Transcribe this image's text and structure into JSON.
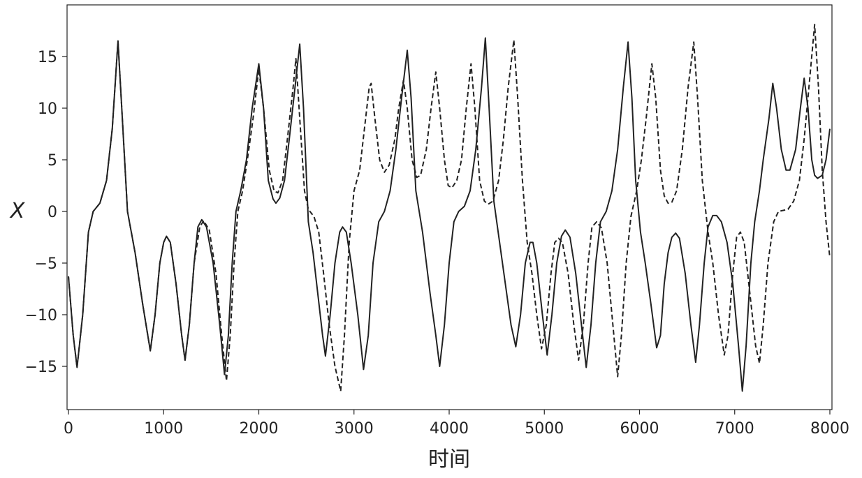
{
  "chart_data": {
    "type": "line",
    "title": "",
    "xlabel": "时间",
    "ylabel": "X",
    "xlim": [
      0,
      8000
    ],
    "ylim": [
      -19,
      20
    ],
    "xticks": [
      0,
      1000,
      2000,
      3000,
      4000,
      5000,
      6000,
      7000,
      8000
    ],
    "xtick_labels": [
      "0",
      "1000",
      "2000",
      "3000",
      "4000",
      "5000",
      "6000",
      "7000",
      "8000"
    ],
    "yticks": [
      -15,
      -10,
      -5,
      0,
      5,
      10,
      15
    ],
    "ytick_labels": [
      "−15",
      "−10",
      "−5",
      "0",
      "5",
      "10",
      "15"
    ],
    "grid": false,
    "legend": "none",
    "series": [
      {
        "style": "solid",
        "color": "#222222",
        "points": [
          [
            0,
            -6.3
          ],
          [
            50,
            -12
          ],
          [
            90,
            -15.1
          ],
          [
            150,
            -10
          ],
          [
            210,
            -2
          ],
          [
            260,
            0
          ],
          [
            330,
            0.8
          ],
          [
            400,
            3
          ],
          [
            460,
            8
          ],
          [
            520,
            16.5
          ],
          [
            560,
            10
          ],
          [
            620,
            0
          ],
          [
            700,
            -4
          ],
          [
            780,
            -9
          ],
          [
            860,
            -13.5
          ],
          [
            910,
            -10
          ],
          [
            960,
            -5
          ],
          [
            1000,
            -3
          ],
          [
            1030,
            -2.4
          ],
          [
            1070,
            -3
          ],
          [
            1130,
            -7
          ],
          [
            1190,
            -12
          ],
          [
            1225,
            -14.4
          ],
          [
            1270,
            -11
          ],
          [
            1320,
            -5
          ],
          [
            1360,
            -1.5
          ],
          [
            1400,
            -0.8
          ],
          [
            1450,
            -1.5
          ],
          [
            1520,
            -5
          ],
          [
            1590,
            -11
          ],
          [
            1640,
            -15.8
          ],
          [
            1680,
            -12
          ],
          [
            1720,
            -5
          ],
          [
            1760,
            0
          ],
          [
            1810,
            2
          ],
          [
            1870,
            5
          ],
          [
            1930,
            10
          ],
          [
            2000,
            14.3
          ],
          [
            2050,
            10
          ],
          [
            2100,
            3
          ],
          [
            2150,
            1.2
          ],
          [
            2180,
            0.8
          ],
          [
            2220,
            1.3
          ],
          [
            2270,
            3
          ],
          [
            2320,
            7
          ],
          [
            2380,
            12
          ],
          [
            2430,
            16.2
          ],
          [
            2470,
            10
          ],
          [
            2520,
            -1
          ],
          [
            2570,
            -4
          ],
          [
            2620,
            -8
          ],
          [
            2670,
            -12
          ],
          [
            2700,
            -14
          ],
          [
            2750,
            -10
          ],
          [
            2800,
            -5
          ],
          [
            2850,
            -2
          ],
          [
            2880,
            -1.5
          ],
          [
            2920,
            -2
          ],
          [
            2970,
            -5
          ],
          [
            3040,
            -10
          ],
          [
            3100,
            -15.3
          ],
          [
            3150,
            -12
          ],
          [
            3200,
            -5
          ],
          [
            3260,
            -1
          ],
          [
            3320,
            0
          ],
          [
            3380,
            2
          ],
          [
            3440,
            6
          ],
          [
            3500,
            11
          ],
          [
            3560,
            15.6
          ],
          [
            3600,
            11
          ],
          [
            3650,
            2
          ],
          [
            3720,
            -2
          ],
          [
            3800,
            -8
          ],
          [
            3860,
            -12
          ],
          [
            3900,
            -15
          ],
          [
            3950,
            -11
          ],
          [
            4000,
            -5
          ],
          [
            4050,
            -1
          ],
          [
            4100,
            0
          ],
          [
            4160,
            0.5
          ],
          [
            4220,
            2
          ],
          [
            4280,
            6
          ],
          [
            4340,
            12
          ],
          [
            4380,
            16.8
          ],
          [
            4420,
            10
          ],
          [
            4470,
            1
          ],
          [
            4530,
            -3
          ],
          [
            4590,
            -7
          ],
          [
            4650,
            -11
          ],
          [
            4700,
            -13.1
          ],
          [
            4750,
            -10
          ],
          [
            4800,
            -5
          ],
          [
            4850,
            -3
          ],
          [
            4880,
            -3
          ],
          [
            4920,
            -5
          ],
          [
            4980,
            -10
          ],
          [
            5030,
            -13.9
          ],
          [
            5080,
            -10
          ],
          [
            5130,
            -5
          ],
          [
            5180,
            -2.4
          ],
          [
            5220,
            -1.8
          ],
          [
            5270,
            -2.5
          ],
          [
            5330,
            -6
          ],
          [
            5390,
            -11
          ],
          [
            5440,
            -15.1
          ],
          [
            5490,
            -11
          ],
          [
            5540,
            -5
          ],
          [
            5590,
            -1
          ],
          [
            5650,
            0
          ],
          [
            5710,
            2
          ],
          [
            5770,
            6
          ],
          [
            5830,
            12
          ],
          [
            5880,
            16.4
          ],
          [
            5920,
            11
          ],
          [
            5960,
            3
          ],
          [
            6010,
            -2
          ],
          [
            6060,
            -5
          ],
          [
            6120,
            -9
          ],
          [
            6180,
            -13.2
          ],
          [
            6220,
            -12
          ],
          [
            6260,
            -7
          ],
          [
            6300,
            -4
          ],
          [
            6340,
            -2.5
          ],
          [
            6380,
            -2.1
          ],
          [
            6420,
            -2.6
          ],
          [
            6480,
            -6
          ],
          [
            6540,
            -11
          ],
          [
            6590,
            -14.6
          ],
          [
            6630,
            -11
          ],
          [
            6680,
            -5
          ],
          [
            6720,
            -1.5
          ],
          [
            6770,
            -0.4
          ],
          [
            6810,
            -0.4
          ],
          [
            6860,
            -1
          ],
          [
            6920,
            -3
          ],
          [
            6980,
            -7
          ],
          [
            7040,
            -13
          ],
          [
            7080,
            -17.4
          ],
          [
            7120,
            -13
          ],
          [
            7170,
            -5
          ],
          [
            7210,
            -1
          ],
          [
            7260,
            2
          ],
          [
            7300,
            5
          ],
          [
            7360,
            9
          ],
          [
            7400,
            12.4
          ],
          [
            7440,
            10
          ],
          [
            7490,
            6
          ],
          [
            7540,
            4
          ],
          [
            7580,
            4
          ],
          [
            7640,
            6
          ],
          [
            7690,
            10
          ],
          [
            7730,
            12.9
          ],
          [
            7770,
            10
          ],
          [
            7810,
            5
          ],
          [
            7840,
            3.5
          ],
          [
            7870,
            3.2
          ],
          [
            7920,
            3.5
          ],
          [
            7960,
            5
          ],
          [
            8000,
            8
          ]
        ]
      },
      {
        "style": "dashed",
        "color": "#222222",
        "points": [
          [
            0,
            -6.3
          ],
          [
            50,
            -12
          ],
          [
            90,
            -15.1
          ],
          [
            150,
            -10
          ],
          [
            210,
            -2
          ],
          [
            260,
            0
          ],
          [
            330,
            0.8
          ],
          [
            400,
            3
          ],
          [
            460,
            8
          ],
          [
            520,
            16.5
          ],
          [
            560,
            10
          ],
          [
            620,
            0
          ],
          [
            700,
            -4
          ],
          [
            780,
            -9
          ],
          [
            860,
            -13.5
          ],
          [
            910,
            -10
          ],
          [
            960,
            -5
          ],
          [
            1000,
            -3
          ],
          [
            1030,
            -2.4
          ],
          [
            1070,
            -3
          ],
          [
            1130,
            -7
          ],
          [
            1190,
            -12
          ],
          [
            1225,
            -14.4
          ],
          [
            1270,
            -11
          ],
          [
            1320,
            -5
          ],
          [
            1380,
            -1.5
          ],
          [
            1420,
            -0.9
          ],
          [
            1480,
            -1.8
          ],
          [
            1550,
            -6
          ],
          [
            1610,
            -12
          ],
          [
            1660,
            -16.4
          ],
          [
            1700,
            -12
          ],
          [
            1740,
            -5
          ],
          [
            1780,
            0
          ],
          [
            1830,
            2
          ],
          [
            1880,
            5
          ],
          [
            1940,
            9
          ],
          [
            2000,
            13.8
          ],
          [
            2050,
            10
          ],
          [
            2110,
            4
          ],
          [
            2160,
            2
          ],
          [
            2200,
            1.8
          ],
          [
            2250,
            3
          ],
          [
            2300,
            7
          ],
          [
            2360,
            12
          ],
          [
            2390,
            14.8
          ],
          [
            2430,
            9
          ],
          [
            2480,
            2
          ],
          [
            2520,
            0.2
          ],
          [
            2580,
            -0.5
          ],
          [
            2630,
            -2
          ],
          [
            2680,
            -6
          ],
          [
            2740,
            -11
          ],
          [
            2800,
            -15
          ],
          [
            2860,
            -17.4
          ],
          [
            2900,
            -12
          ],
          [
            2950,
            -3
          ],
          [
            3000,
            2
          ],
          [
            3060,
            4
          ],
          [
            3110,
            8
          ],
          [
            3160,
            12
          ],
          [
            3180,
            12.4
          ],
          [
            3220,
            9
          ],
          [
            3270,
            5
          ],
          [
            3320,
            3.8
          ],
          [
            3370,
            4.5
          ],
          [
            3430,
            7
          ],
          [
            3470,
            10
          ],
          [
            3520,
            12.7
          ],
          [
            3560,
            10
          ],
          [
            3610,
            5
          ],
          [
            3660,
            3.3
          ],
          [
            3700,
            3.5
          ],
          [
            3760,
            6
          ],
          [
            3810,
            10
          ],
          [
            3860,
            13.5
          ],
          [
            3900,
            10
          ],
          [
            3950,
            5
          ],
          [
            3990,
            2.5
          ],
          [
            4030,
            2.3
          ],
          [
            4080,
            3
          ],
          [
            4130,
            5
          ],
          [
            4180,
            10
          ],
          [
            4230,
            14.3
          ],
          [
            4270,
            10
          ],
          [
            4320,
            3
          ],
          [
            4370,
            1
          ],
          [
            4410,
            0.7
          ],
          [
            4460,
            1
          ],
          [
            4520,
            3
          ],
          [
            4570,
            7
          ],
          [
            4620,
            12
          ],
          [
            4680,
            16.6
          ],
          [
            4720,
            11
          ],
          [
            4770,
            3
          ],
          [
            4820,
            -3
          ],
          [
            4870,
            -6
          ],
          [
            4920,
            -10
          ],
          [
            4970,
            -13.3
          ],
          [
            5020,
            -11
          ],
          [
            5070,
            -6
          ],
          [
            5110,
            -3
          ],
          [
            5150,
            -2.6
          ],
          [
            5190,
            -3
          ],
          [
            5250,
            -6
          ],
          [
            5310,
            -11
          ],
          [
            5360,
            -14.4
          ],
          [
            5410,
            -11
          ],
          [
            5460,
            -5
          ],
          [
            5500,
            -1.5
          ],
          [
            5550,
            -1
          ],
          [
            5600,
            -1.6
          ],
          [
            5660,
            -5
          ],
          [
            5720,
            -11
          ],
          [
            5770,
            -16
          ],
          [
            5810,
            -12
          ],
          [
            5860,
            -5
          ],
          [
            5910,
            -0.5
          ],
          [
            5970,
            2
          ],
          [
            6020,
            5
          ],
          [
            6070,
            9
          ],
          [
            6130,
            14.3
          ],
          [
            6170,
            11
          ],
          [
            6220,
            4
          ],
          [
            6260,
            1.5
          ],
          [
            6300,
            0.8
          ],
          [
            6340,
            0.9
          ],
          [
            6390,
            2
          ],
          [
            6450,
            6
          ],
          [
            6510,
            12
          ],
          [
            6570,
            16.4
          ],
          [
            6610,
            11
          ],
          [
            6660,
            3
          ],
          [
            6720,
            -2
          ],
          [
            6770,
            -5
          ],
          [
            6830,
            -10
          ],
          [
            6890,
            -13.9
          ],
          [
            6930,
            -12
          ],
          [
            6980,
            -6
          ],
          [
            7020,
            -2.5
          ],
          [
            7060,
            -2
          ],
          [
            7100,
            -3
          ],
          [
            7160,
            -8
          ],
          [
            7220,
            -13
          ],
          [
            7260,
            -14.7
          ],
          [
            7300,
            -11
          ],
          [
            7350,
            -5
          ],
          [
            7410,
            -1
          ],
          [
            7460,
            0
          ],
          [
            7510,
            0.1
          ],
          [
            7560,
            0.2
          ],
          [
            7620,
            1
          ],
          [
            7680,
            3
          ],
          [
            7730,
            7
          ],
          [
            7780,
            12
          ],
          [
            7840,
            18.1
          ],
          [
            7880,
            12
          ],
          [
            7920,
            4
          ],
          [
            7960,
            -1
          ],
          [
            8000,
            -4.5
          ]
        ]
      }
    ]
  }
}
